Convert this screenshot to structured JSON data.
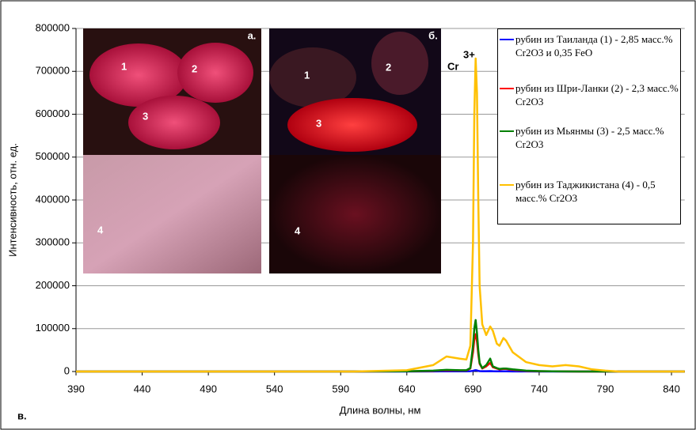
{
  "chart_data": {
    "type": "line",
    "x": [
      390,
      600,
      640,
      660,
      665,
      670,
      680,
      685,
      688,
      690,
      691,
      692,
      693,
      694,
      695,
      697,
      700,
      703,
      705,
      708,
      710,
      713,
      715,
      720,
      730,
      740,
      750,
      760,
      770,
      780,
      790,
      800,
      850
    ],
    "series": [
      {
        "name": "рубин из Таиланда (1) - 2,85 масс.% Cr2O3 и 0,35 FeO",
        "color": "#0000ff",
        "values": [
          0,
          0,
          100,
          300,
          400,
          500,
          500,
          500,
          800,
          1500,
          2500,
          3000,
          2500,
          1500,
          1000,
          600,
          800,
          1000,
          700,
          500,
          400,
          400,
          400,
          300,
          200,
          100,
          100,
          100,
          0,
          0,
          0,
          0,
          0
        ]
      },
      {
        "name": "рубин из Шри-Ланки (2) - 2,3 масс.% Cr2O3",
        "color": "#ff0000",
        "values": [
          0,
          0,
          500,
          1500,
          2500,
          3000,
          2500,
          2500,
          7000,
          45000,
          75000,
          87000,
          70000,
          40000,
          18000,
          7000,
          12000,
          20000,
          10000,
          7000,
          5000,
          6000,
          6000,
          4000,
          1500,
          800,
          400,
          200,
          100,
          0,
          0,
          0,
          0
        ]
      },
      {
        "name": "рубин из Мьянмы (3) - 2,5 масс.% Cr2O3",
        "color": "#008000",
        "values": [
          0,
          0,
          500,
          2000,
          3000,
          4000,
          3000,
          3000,
          8000,
          60000,
          100000,
          120000,
          90000,
          50000,
          20000,
          8000,
          15000,
          30000,
          12000,
          8000,
          6000,
          7000,
          7000,
          5000,
          2000,
          1000,
          500,
          200,
          100,
          0,
          0,
          0,
          0
        ]
      },
      {
        "name": "рубин из Таджикистана (4) - 0,5 масс.% Cr2O3",
        "color": "#ffc000",
        "values": [
          0,
          0,
          3000,
          15000,
          25000,
          35000,
          30000,
          28000,
          60000,
          300000,
          600000,
          730000,
          650000,
          400000,
          200000,
          110000,
          85000,
          105000,
          95000,
          65000,
          60000,
          78000,
          72000,
          45000,
          22000,
          15000,
          12000,
          15000,
          12000,
          5000,
          2000,
          0,
          0
        ]
      }
    ],
    "xlim": [
      390,
      850
    ],
    "xticks": [
      390,
      440,
      490,
      540,
      590,
      640,
      690,
      740,
      790,
      840
    ],
    "ylim": [
      0,
      800000
    ],
    "yticks": [
      0,
      100000,
      200000,
      300000,
      400000,
      500000,
      600000,
      700000,
      800000
    ],
    "grid": true,
    "x_label": "Длина волны, нм",
    "y_label": "Интенсивность, отн. ед.",
    "annotation": {
      "text": "Cr",
      "superscript": "3+"
    },
    "panel_label": "в.",
    "insets": [
      {
        "label": "а.",
        "markers": [
          "1",
          "2",
          "3",
          "4"
        ]
      },
      {
        "label": "б.",
        "markers": [
          "1",
          "2",
          "3",
          "4"
        ]
      }
    ]
  }
}
